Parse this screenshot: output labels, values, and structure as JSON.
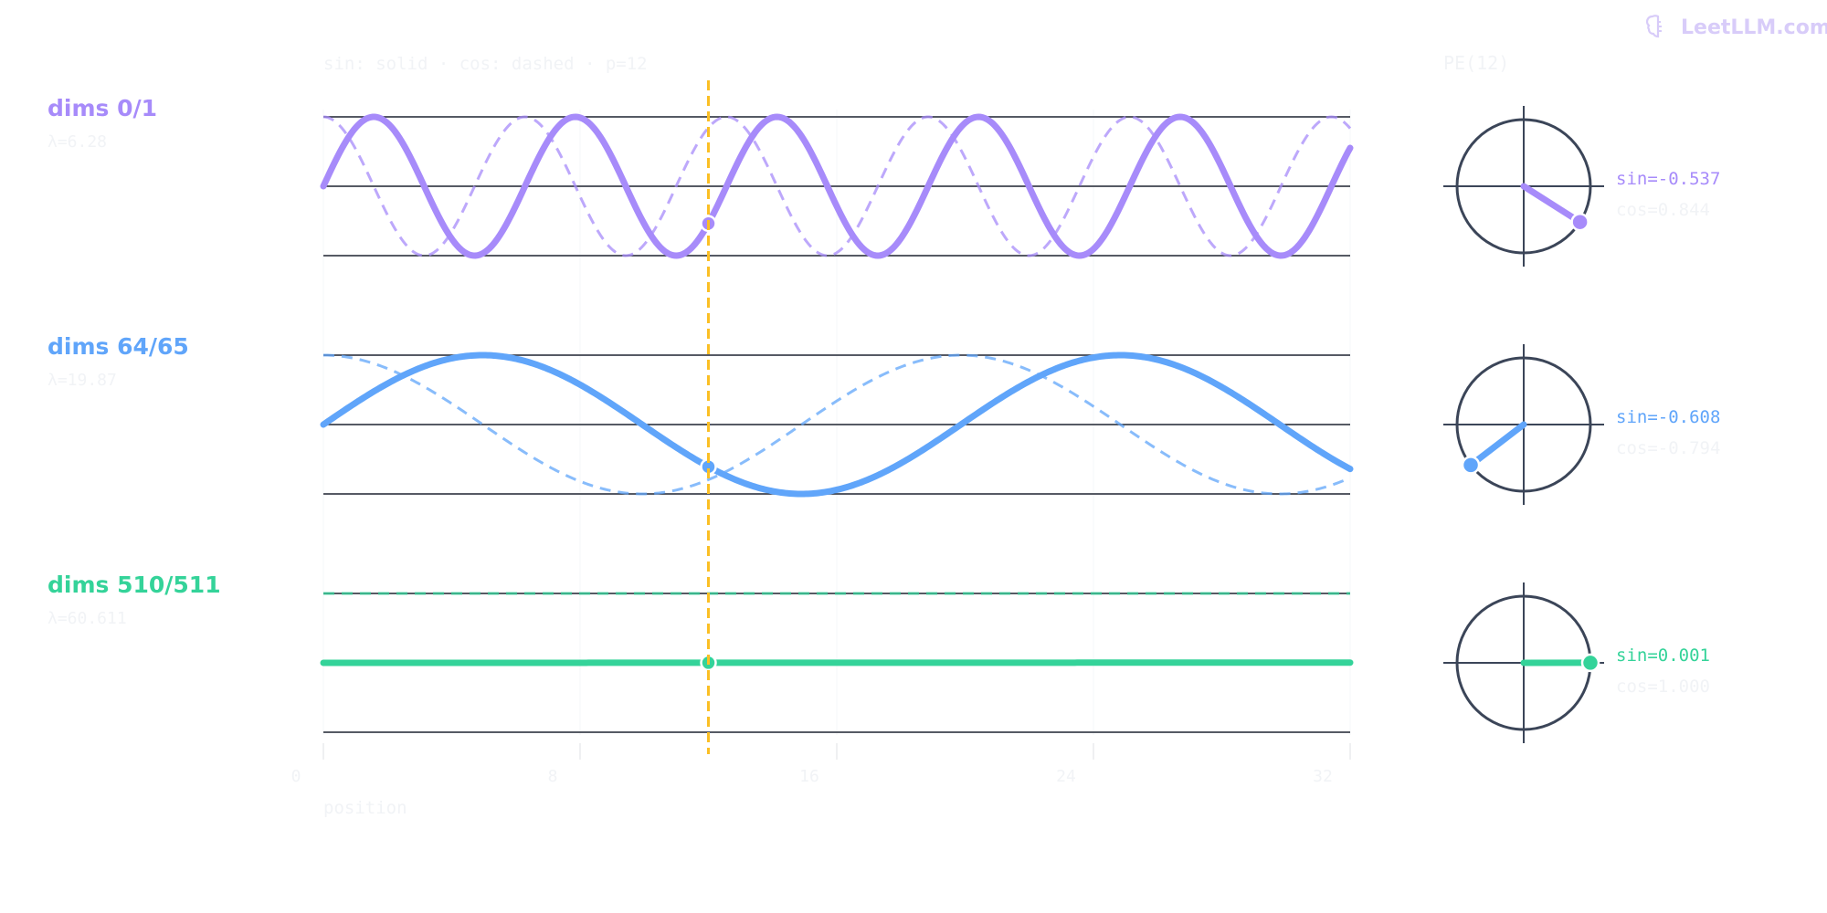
{
  "header": {
    "brand": "LeetLLM.com",
    "brand_icon": "brain-icon",
    "legend_text": "sin: solid · cos: dashed · p=12",
    "pe_label": "PE(12)"
  },
  "colors": {
    "purple": "#a78bfa",
    "blue": "#60a5fa",
    "green": "#34d399",
    "marker": "#fbbf24",
    "ring": "#3b4558"
  },
  "chart_data": {
    "type": "line",
    "xlabel": "position",
    "xlim": [
      0,
      32
    ],
    "x_ticks": [
      0,
      8,
      16,
      24,
      32
    ],
    "x_tick_labels": [
      "0",
      "8",
      "16",
      "24",
      "32"
    ],
    "ylim": [
      -1,
      1
    ],
    "marker_position": 12,
    "rows": [
      {
        "label": "dims 0/1",
        "wavelength_label": "λ=6.28",
        "wavelength": 6.283,
        "color": "#a78bfa",
        "sin_text": "sin=-0.537",
        "cos_text": "cos=0.844",
        "sin_value": -0.537,
        "cos_value": 0.844,
        "series": [
          {
            "style": "solid",
            "function": "sin(2πx/λ)"
          },
          {
            "style": "dashed",
            "function": "cos(2πx/λ)"
          }
        ]
      },
      {
        "label": "dims 64/65",
        "wavelength_label": "λ=19.87",
        "wavelength": 19.87,
        "color": "#60a5fa",
        "sin_text": "sin=-0.608",
        "cos_text": "cos=-0.794",
        "sin_value": -0.608,
        "cos_value": -0.794,
        "series": [
          {
            "style": "solid",
            "function": "sin(2πx/λ)"
          },
          {
            "style": "dashed",
            "function": "cos(2πx/λ)"
          }
        ]
      },
      {
        "label": "dims 510/511",
        "wavelength_label": "λ=60.611",
        "wavelength": 60611,
        "color": "#34d399",
        "sin_text": "sin=0.001",
        "cos_text": "cos=1.000",
        "sin_value": 0.001,
        "cos_value": 1.0,
        "series": [
          {
            "style": "solid",
            "function": "sin(2πx/λ)"
          },
          {
            "style": "dashed",
            "function": "cos(2πx/λ)"
          }
        ]
      }
    ]
  }
}
